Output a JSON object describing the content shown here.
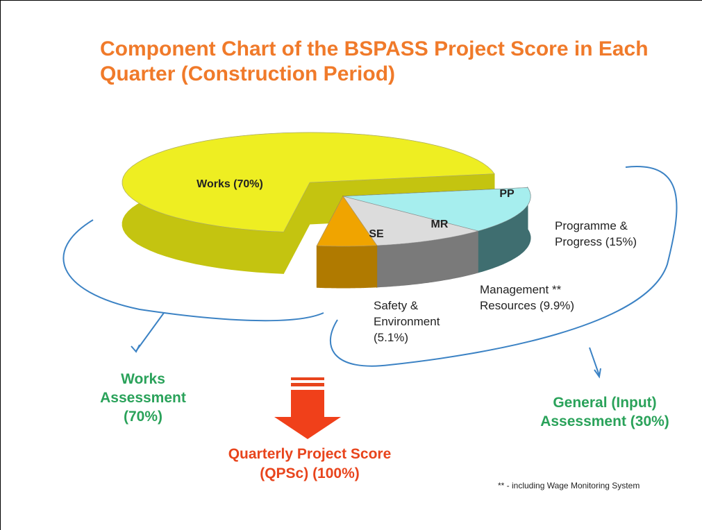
{
  "chart_data": {
    "type": "pie",
    "title": "Component Chart of the BSPASS Project Score in Each Quarter (Construction Period)",
    "categories": [
      "Works (70%)",
      "SE",
      "MR",
      "PP"
    ],
    "values": [
      70,
      5.1,
      9.9,
      15
    ],
    "colors": [
      "#eeee22",
      "#f0a400",
      "#dcdcdc",
      "#a6eeee"
    ],
    "side_colors": [
      "#c4c410",
      "#b07a00",
      "#7a7a7a",
      "#3f6e70"
    ],
    "outer_labels": [
      null,
      "Safety & Environment (5.1%)",
      "Management ** Resources (9.9%)",
      "Programme & Progress (15%)"
    ],
    "groups": [
      "Works Assessment (70%)",
      "General (Input) Assessment (30%)"
    ],
    "total_label": "Quarterly Project Score (QPSc) (100%)",
    "footnote": "** - including Wage Monitoring System"
  }
}
